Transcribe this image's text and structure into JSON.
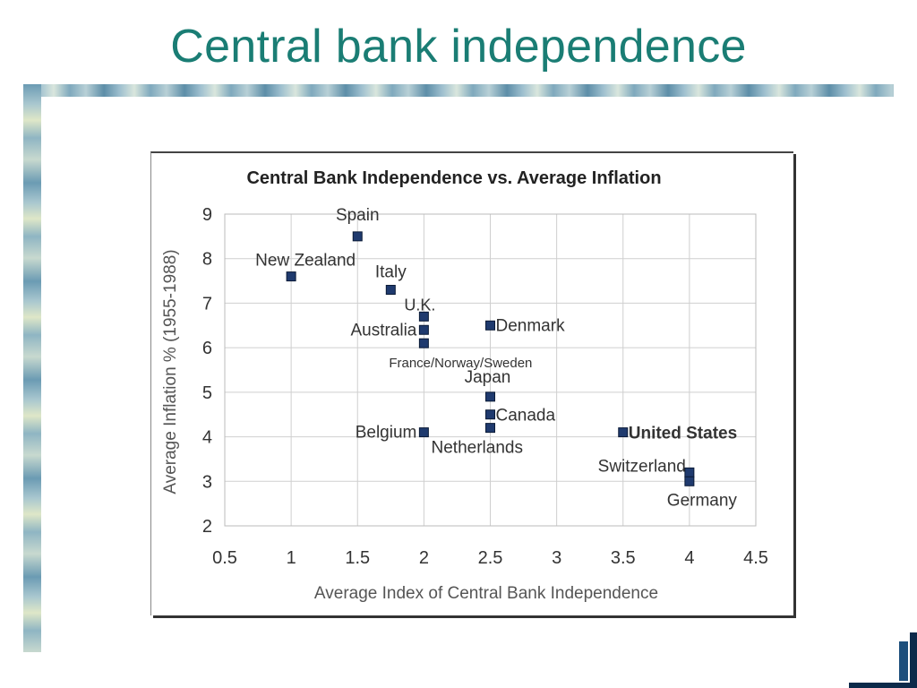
{
  "slide": {
    "title": "Central bank independence"
  },
  "chart_data": {
    "type": "scatter",
    "title": "Central Bank Independence vs. Average Inflation",
    "xlabel": "Average Index of Central Bank Independence",
    "ylabel": "Average Inflation % (1955-1988)",
    "xlim": [
      0.5,
      4.5
    ],
    "ylim": [
      2,
      9
    ],
    "xticks": [
      "0.5",
      "1",
      "1.5",
      "2",
      "2.5",
      "3",
      "3.5",
      "4",
      "4.5"
    ],
    "yticks": [
      "2",
      "3",
      "4",
      "5",
      "6",
      "7",
      "8",
      "9"
    ],
    "grid": true,
    "marker_color": "#1f3a6e",
    "points": [
      {
        "x": 1.5,
        "y": 8.5,
        "label": "Spain"
      },
      {
        "x": 1.0,
        "y": 7.6,
        "label": "New Zealand"
      },
      {
        "x": 1.75,
        "y": 7.3,
        "label": "Italy"
      },
      {
        "x": 2.0,
        "y": 6.7,
        "label": "U.K."
      },
      {
        "x": 2.0,
        "y": 6.4,
        "label": "Australia"
      },
      {
        "x": 2.0,
        "y": 6.1,
        "label": "France/Norway/Sweden"
      },
      {
        "x": 2.5,
        "y": 6.5,
        "label": "Denmark"
      },
      {
        "x": 2.5,
        "y": 4.9,
        "label": "Japan"
      },
      {
        "x": 2.5,
        "y": 4.5,
        "label": "Canada"
      },
      {
        "x": 2.5,
        "y": 4.2,
        "label": "Netherlands"
      },
      {
        "x": 2.0,
        "y": 4.1,
        "label": "Belgium"
      },
      {
        "x": 3.5,
        "y": 4.1,
        "label": "United States"
      },
      {
        "x": 4.0,
        "y": 3.2,
        "label": "Switzerland"
      },
      {
        "x": 4.0,
        "y": 3.0,
        "label": "Germany"
      }
    ]
  }
}
